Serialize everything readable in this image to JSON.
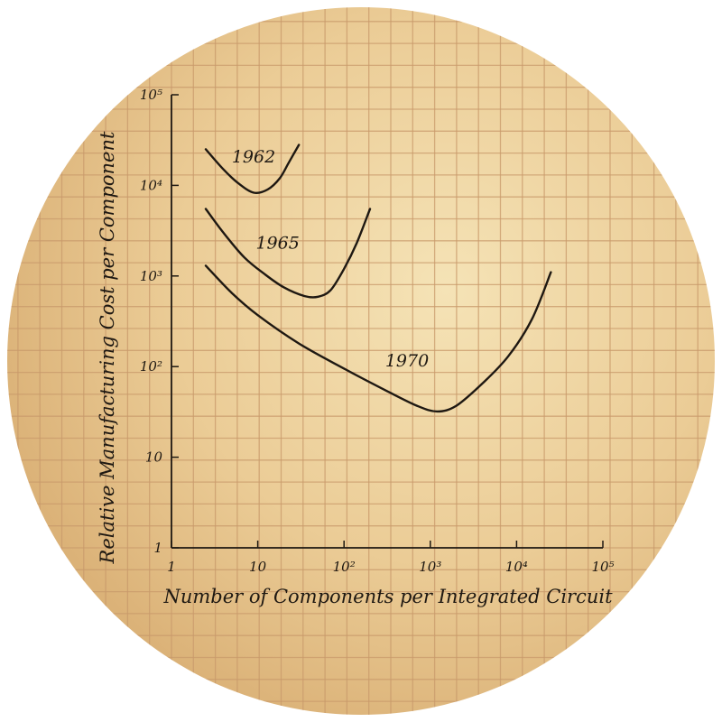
{
  "chart_data": {
    "type": "line",
    "title": "",
    "xlabel": "Number of Components per Integrated Circuit",
    "ylabel": "Relative Manufacturing Cost per Component",
    "x_scale": "log",
    "y_scale": "log",
    "xlim": [
      1,
      100000
    ],
    "ylim": [
      1,
      100000
    ],
    "x_ticks": [
      {
        "value": 1,
        "label": "1"
      },
      {
        "value": 10,
        "label": "10"
      },
      {
        "value": 100,
        "label": "10²"
      },
      {
        "value": 1000,
        "label": "10³"
      },
      {
        "value": 10000,
        "label": "10⁴"
      },
      {
        "value": 100000,
        "label": "10⁵"
      }
    ],
    "y_ticks": [
      {
        "value": 1,
        "label": "1"
      },
      {
        "value": 10,
        "label": "10"
      },
      {
        "value": 100,
        "label": "10²"
      },
      {
        "value": 1000,
        "label": "10³"
      },
      {
        "value": 10000,
        "label": "10⁴"
      },
      {
        "value": 100000,
        "label": "10⁵"
      }
    ],
    "grid": true,
    "legend": "none",
    "colors": {
      "paper_light": "#f2dcaa",
      "paper_dark": "#dcb478",
      "grid": "#c99a6b",
      "ink": "#1e1812"
    },
    "series": [
      {
        "name": "1962",
        "label_at": [
          5,
          18000
        ],
        "points": [
          [
            2.5,
            25000
          ],
          [
            4,
            15000
          ],
          [
            6,
            10500
          ],
          [
            9,
            8300
          ],
          [
            13,
            9000
          ],
          [
            18,
            12000
          ],
          [
            23,
            18000
          ],
          [
            30,
            28000
          ]
        ]
      },
      {
        "name": "1965",
        "label_at": [
          9.5,
          2000
        ],
        "points": [
          [
            2.5,
            5500
          ],
          [
            4,
            3000
          ],
          [
            7,
            1600
          ],
          [
            12,
            1050
          ],
          [
            20,
            750
          ],
          [
            35,
            600
          ],
          [
            50,
            590
          ],
          [
            70,
            700
          ],
          [
            100,
            1200
          ],
          [
            140,
            2300
          ],
          [
            200,
            5500
          ]
        ]
      },
      {
        "name": "1970",
        "label_at": [
          300,
          100
        ],
        "points": [
          [
            2.5,
            1300
          ],
          [
            5,
            650
          ],
          [
            10,
            370
          ],
          [
            30,
            180
          ],
          [
            100,
            95
          ],
          [
            300,
            55
          ],
          [
            700,
            37
          ],
          [
            1200,
            32
          ],
          [
            2000,
            37
          ],
          [
            4000,
            65
          ],
          [
            8000,
            130
          ],
          [
            15000,
            330
          ],
          [
            25000,
            1100
          ]
        ]
      }
    ]
  }
}
